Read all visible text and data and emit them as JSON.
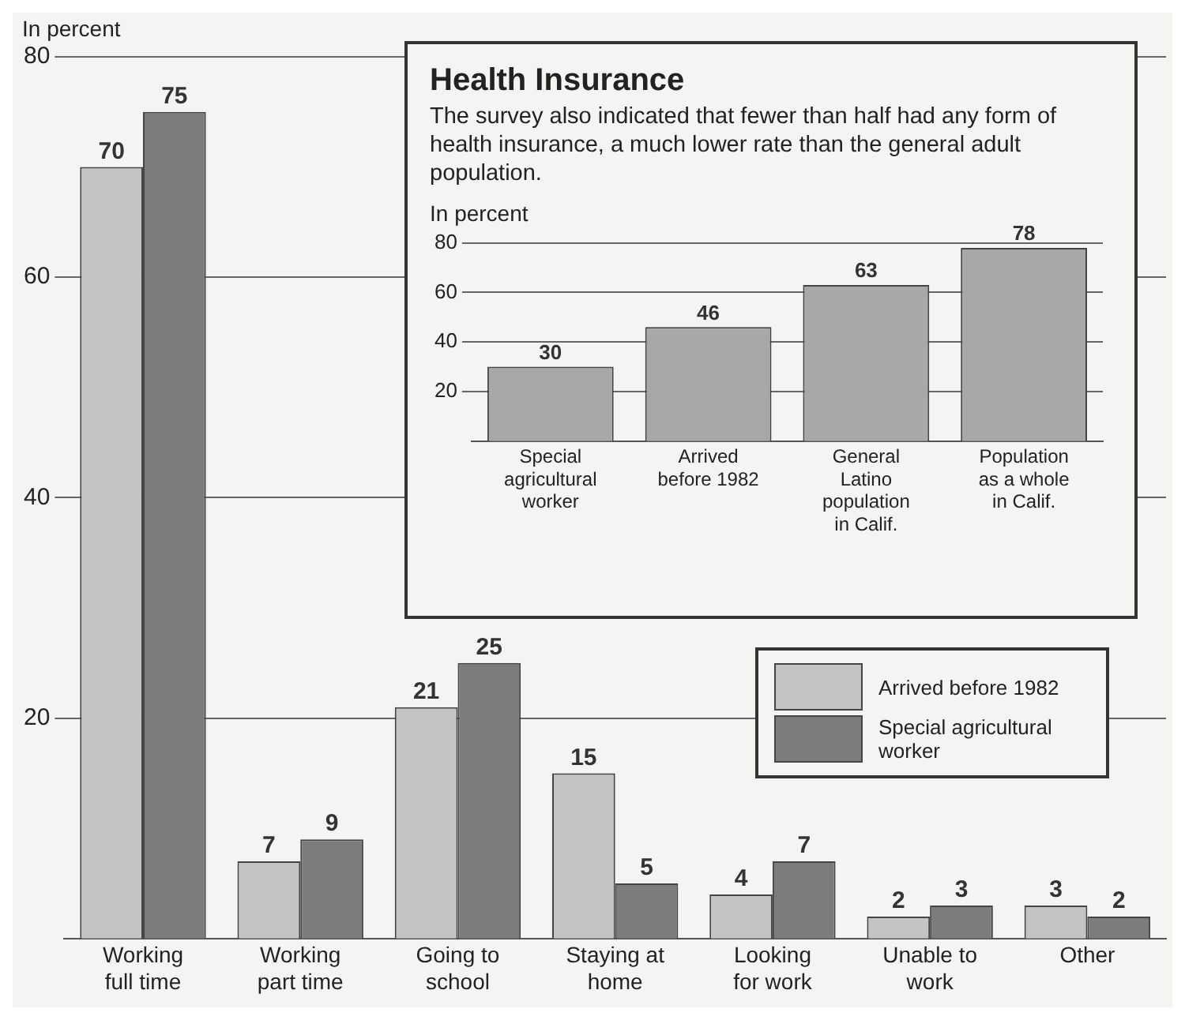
{
  "chart_data": [
    {
      "type": "bar",
      "ylabel": "In percent",
      "categories": [
        "Working full time",
        "Working part time",
        "Going to school",
        "Staying at home",
        "Looking for work",
        "Unable to work",
        "Other"
      ],
      "series": [
        {
          "name": "Arrived before 1982",
          "color": "#c4c4c4",
          "values": [
            70,
            7,
            21,
            15,
            4,
            2,
            3
          ]
        },
        {
          "name": "Special agricultural worker",
          "color": "#7c7c7c",
          "values": [
            75,
            9,
            25,
            5,
            7,
            3,
            2
          ]
        }
      ],
      "ylim": [
        0,
        80
      ],
      "yticks": [
        20,
        40,
        60,
        80
      ],
      "grid": "y",
      "legend": "right",
      "data_labels": true
    },
    {
      "type": "bar",
      "title": "Health Insurance",
      "subtitle": "The survey also indicated that fewer than half had any form of health insurance, a much lower rate than the general adult population.",
      "ylabel": "In percent",
      "categories": [
        "Special agricultural worker",
        "Arrived before 1982",
        "General Latino population in Calif.",
        "Population as a whole in Calif."
      ],
      "values": [
        30,
        46,
        63,
        78
      ],
      "color": "#a8a8a8",
      "ylim": [
        0,
        80
      ],
      "yticks": [
        20,
        40,
        60,
        80
      ],
      "grid": "y",
      "data_labels": true
    }
  ]
}
